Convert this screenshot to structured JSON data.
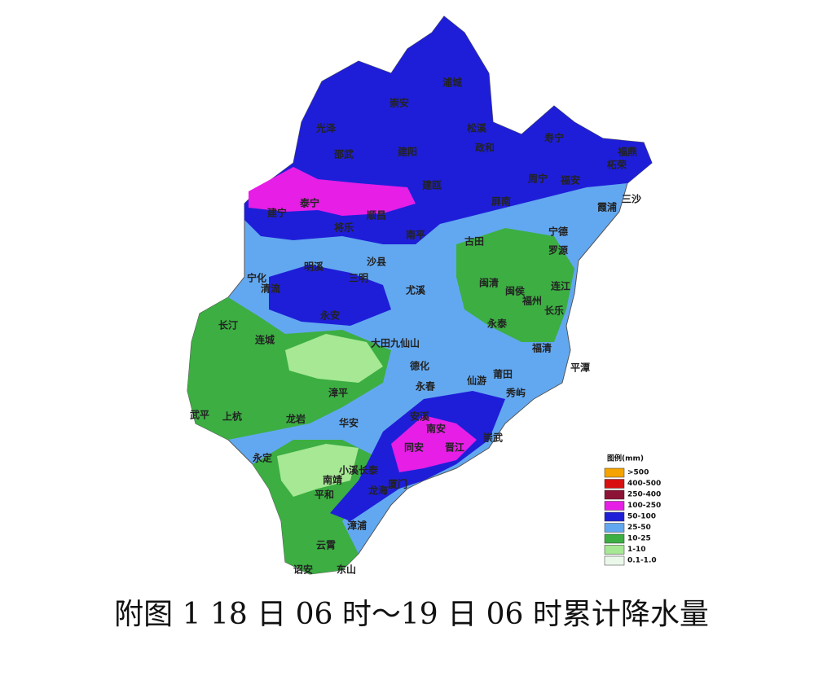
{
  "caption": "附图 1 18 日 06 时～19 日 06 时累计降水量",
  "legend": {
    "title": "图例(mm)",
    "items": [
      {
        "label": ">500",
        "color": "#f5a300"
      },
      {
        "label": "400-500",
        "color": "#d81010"
      },
      {
        "label": "250-400",
        "color": "#8c1236"
      },
      {
        "label": "100-250",
        "color": "#e61ee6"
      },
      {
        "label": "50-100",
        "color": "#1e1ed8"
      },
      {
        "label": "25-50",
        "color": "#62a8f0"
      },
      {
        "label": "10-25",
        "color": "#3cae42"
      },
      {
        "label": "1-10",
        "color": "#a6e894"
      },
      {
        "label": "0.1-1.0",
        "color": "#eaf8ea"
      }
    ]
  },
  "labels": [
    "浦城",
    "崇安",
    "光泽",
    "松溪",
    "寿宁",
    "邵武",
    "建阳",
    "政和",
    "福鼎",
    "柘荣",
    "周宁",
    "福安",
    "建瓯",
    "泰宁",
    "建宁",
    "顺昌",
    "将乐",
    "屏南",
    "霞浦",
    "三沙",
    "南平",
    "古田",
    "宁德",
    "罗源",
    "沙县",
    "明溪",
    "宁化",
    "清流",
    "三明",
    "尤溪",
    "闽清",
    "闽侯",
    "福州",
    "连江",
    "长乐",
    "永安",
    "长汀",
    "永泰",
    "连城",
    "大田九仙山",
    "福清",
    "平潭",
    "德化",
    "永春",
    "仙游",
    "莆田",
    "秀屿",
    "漳平",
    "武平",
    "上杭",
    "龙岩",
    "华安",
    "安溪",
    "南安",
    "崇武",
    "同安",
    "晋江",
    "永定",
    "南靖",
    "小溪长泰",
    "厦门",
    "龙海",
    "平和",
    "漳浦",
    "云霄",
    "诏安",
    "东山"
  ]
}
